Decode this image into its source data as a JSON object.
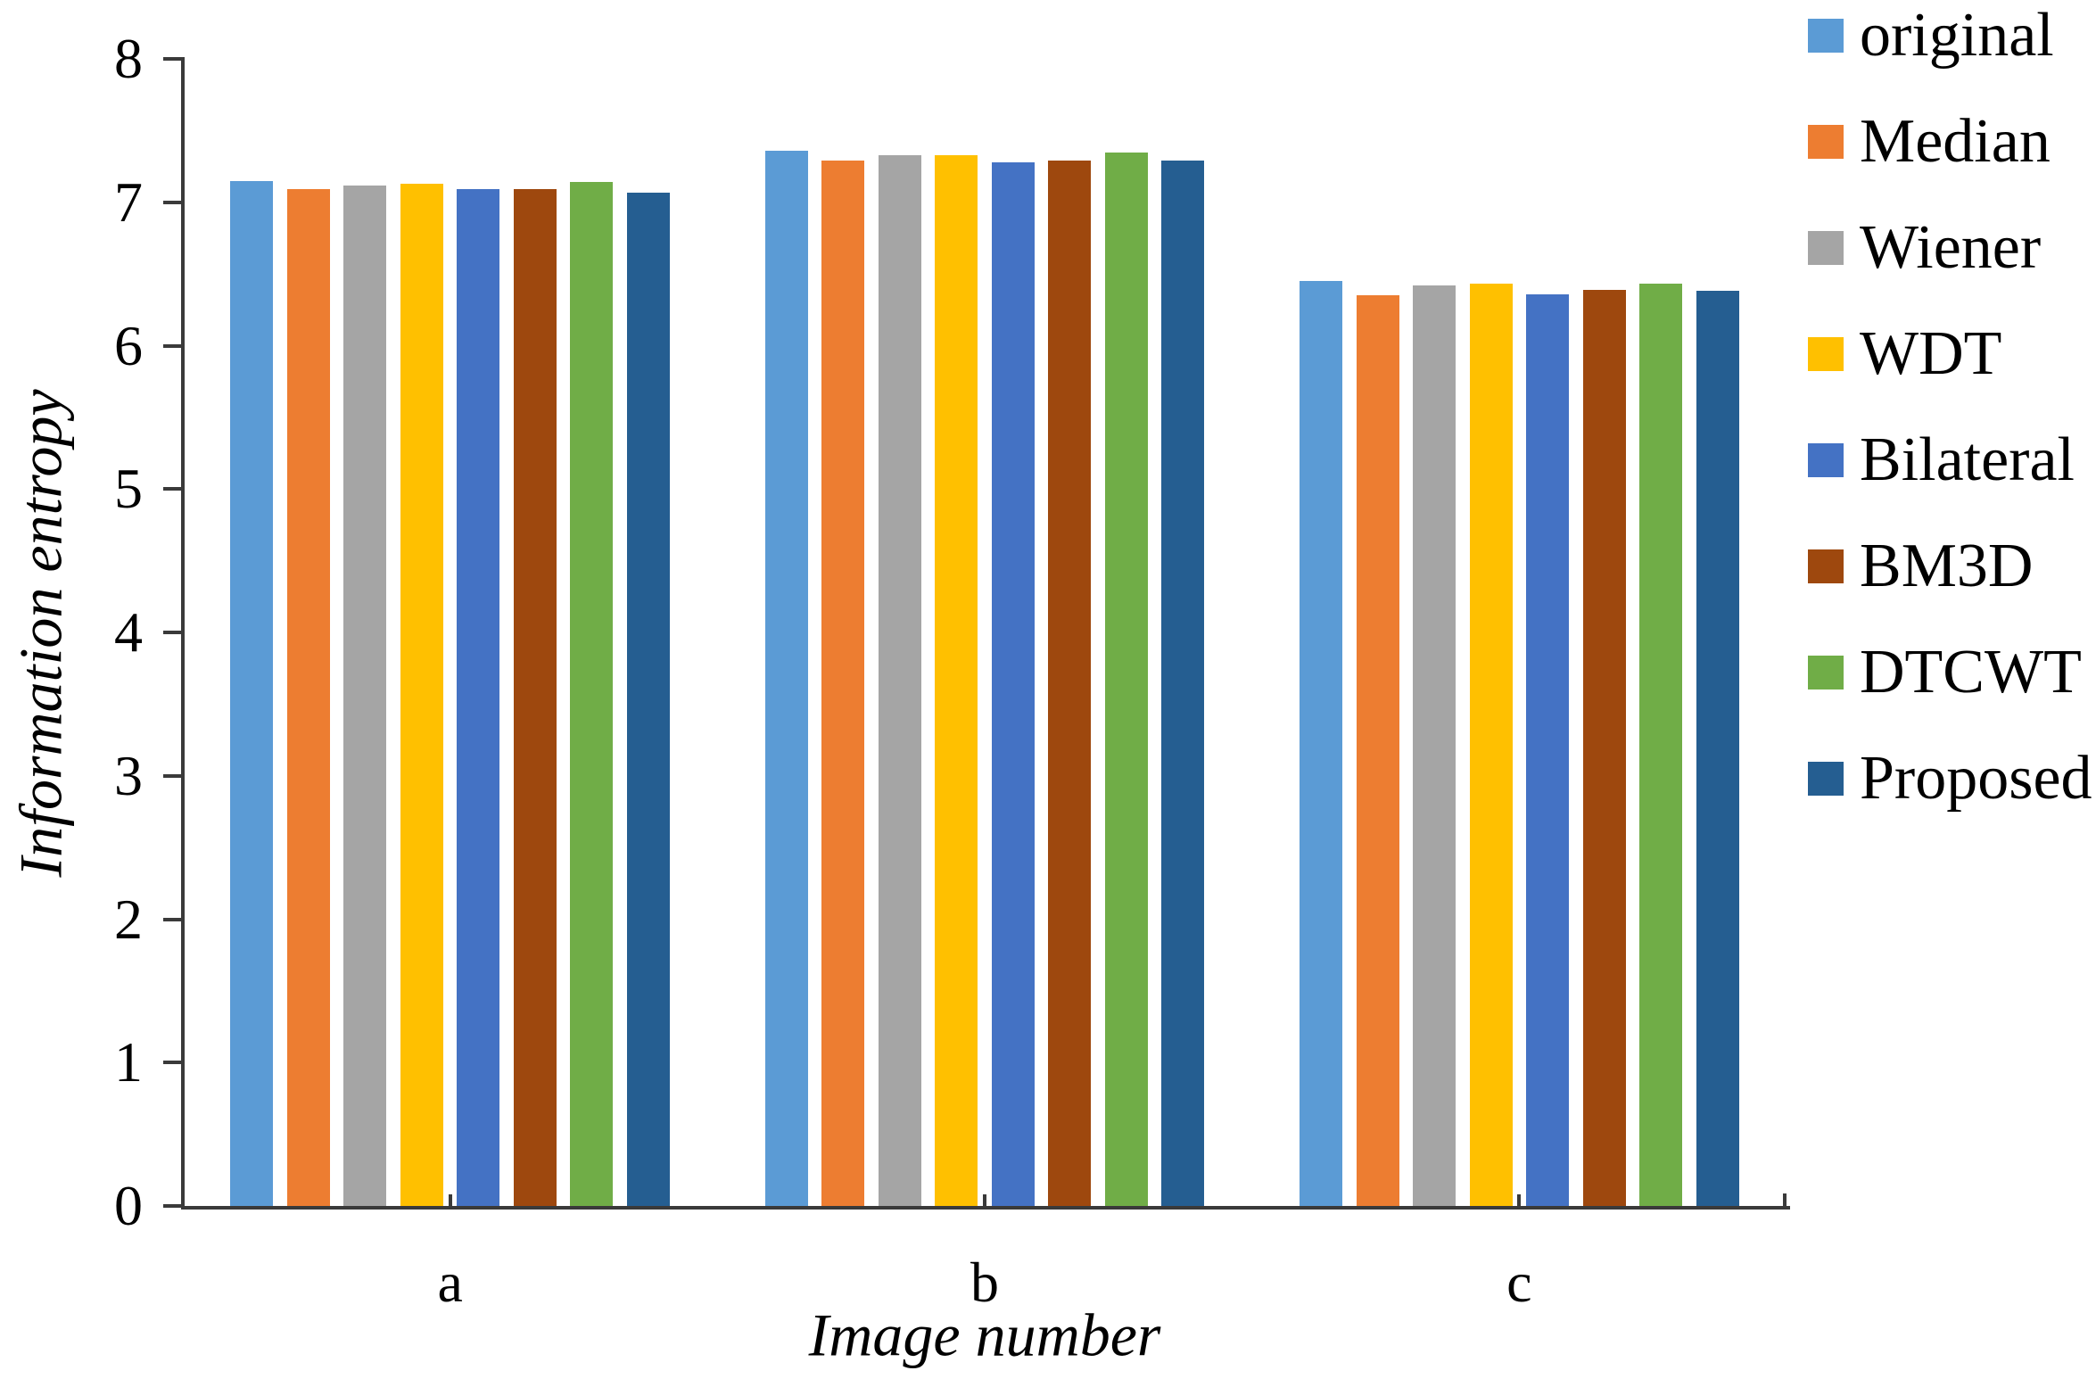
{
  "colors": {
    "axis": "#3A3A3A",
    "text": "#000000",
    "background": "#FFFFFF"
  },
  "chart_data": {
    "type": "bar",
    "title": "",
    "xlabel": "Image number",
    "ylabel": "Information entropy",
    "categories": [
      "a",
      "b",
      "c"
    ],
    "series": [
      {
        "name": "original",
        "color": "#5B9BD5",
        "values": [
          7.15,
          7.36,
          6.45
        ]
      },
      {
        "name": "Median",
        "color": "#ED7D31",
        "values": [
          7.09,
          7.29,
          6.35
        ]
      },
      {
        "name": "Wiener",
        "color": "#A5A5A5",
        "values": [
          7.12,
          7.33,
          6.42
        ]
      },
      {
        "name": "WDT",
        "color": "#FFC000",
        "values": [
          7.13,
          7.33,
          6.43
        ]
      },
      {
        "name": "Bilateral",
        "color": "#4472C4",
        "values": [
          7.09,
          7.28,
          6.36
        ]
      },
      {
        "name": "BM3D",
        "color": "#9E480E",
        "values": [
          7.09,
          7.29,
          6.39
        ]
      },
      {
        "name": "DTCWT",
        "color": "#70AD47",
        "values": [
          7.14,
          7.35,
          6.43
        ]
      },
      {
        "name": "Proposed",
        "color": "#255E91",
        "values": [
          7.07,
          7.29,
          6.38
        ]
      }
    ],
    "ylim": [
      0,
      8
    ],
    "yticks": [
      0,
      1,
      2,
      3,
      4,
      5,
      6,
      7,
      8
    ],
    "grid": false,
    "legend_position": "right"
  }
}
